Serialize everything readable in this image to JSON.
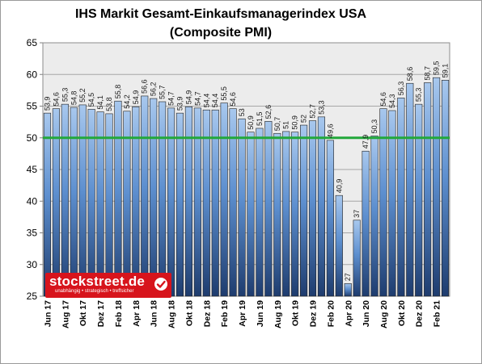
{
  "chart_data": {
    "type": "bar",
    "title_line1": "IHS Markit Gesamt-Einkaufsmanagerindex USA",
    "title_line2": "(Composite PMI)",
    "ylim": [
      25,
      65
    ],
    "yticks": [
      25,
      30,
      35,
      40,
      45,
      50,
      55,
      60,
      65
    ],
    "reference_line": 50,
    "grid": true,
    "bar_color": "#5d8fcf",
    "reference_color": "#22a83a",
    "values": [
      53.9,
      54.6,
      55.3,
      54.8,
      55.2,
      54.5,
      54.1,
      53.8,
      55.8,
      54.2,
      54.9,
      56.6,
      56.2,
      55.7,
      54.7,
      53.9,
      54.9,
      54.7,
      54.4,
      54.4,
      55.5,
      54.6,
      53.0,
      50.9,
      51.5,
      52.6,
      50.7,
      51.0,
      50.9,
      52.0,
      52.7,
      53.3,
      49.6,
      40.9,
      27.0,
      37.0,
      47.9,
      50.3,
      54.6,
      54.3,
      56.3,
      58.6,
      55.3,
      58.7,
      59.5,
      59.1
    ],
    "data_labels": [
      "53,9",
      "54,6",
      "55,3",
      "54,8",
      "55,2",
      "54,5",
      "54,1",
      "53,8",
      "55,8",
      "54,2",
      "54,9",
      "56,6",
      "56,2",
      "55,7",
      "54,7",
      "53,9",
      "54,9",
      "54,7",
      "54,4",
      "54,4",
      "55,5",
      "54,6",
      "53",
      "50,9",
      "51,5",
      "52,6",
      "50,7",
      "51",
      "50,9",
      "52",
      "52,7",
      "53,3",
      "49,6",
      "40,9",
      "27",
      "37",
      "47,9",
      "50,3",
      "54,6",
      "54,3",
      "56,3",
      "58,6",
      "55,3",
      "58,7",
      "59,5",
      "59,1"
    ],
    "xtick_labels": [
      {
        "index": 0,
        "label": "Jun 17"
      },
      {
        "index": 2,
        "label": "Aug 17"
      },
      {
        "index": 4,
        "label": "Okt 17"
      },
      {
        "index": 6,
        "label": "Dez 17"
      },
      {
        "index": 8,
        "label": "Feb 18"
      },
      {
        "index": 10,
        "label": "Apr 18"
      },
      {
        "index": 12,
        "label": "Jun 18"
      },
      {
        "index": 14,
        "label": "Aug 18"
      },
      {
        "index": 16,
        "label": "Okt 18"
      },
      {
        "index": 18,
        "label": "Dez 18"
      },
      {
        "index": 20,
        "label": "Feb 19"
      },
      {
        "index": 22,
        "label": "Apr 19"
      },
      {
        "index": 24,
        "label": "Jun 19"
      },
      {
        "index": 26,
        "label": "Aug 19"
      },
      {
        "index": 28,
        "label": "Okt 19"
      },
      {
        "index": 30,
        "label": "Dez 19"
      },
      {
        "index": 32,
        "label": "Feb 20"
      },
      {
        "index": 34,
        "label": "Apr 20"
      },
      {
        "index": 36,
        "label": "Jun 20"
      },
      {
        "index": 38,
        "label": "Aug 20"
      },
      {
        "index": 40,
        "label": "Okt 20"
      },
      {
        "index": 42,
        "label": "Dez 20"
      },
      {
        "index": 44,
        "label": "Feb 21"
      }
    ]
  },
  "logo": {
    "brand": "stockstreet.de",
    "tagline": "unabhängig • strategisch • treffsicher",
    "icon": "check-icon"
  }
}
